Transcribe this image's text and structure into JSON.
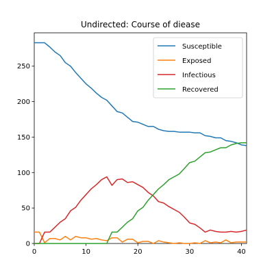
{
  "chart_data": {
    "type": "line",
    "title": "Undirected: Course of diease",
    "xlabel": "",
    "ylabel": "",
    "xlim": [
      0,
      41
    ],
    "ylim": [
      0,
      297
    ],
    "xticks": [
      0,
      10,
      20,
      30,
      40
    ],
    "yticks": [
      0,
      50,
      100,
      150,
      200,
      250
    ],
    "grid": false,
    "legend_position": "top-right",
    "x": [
      0,
      1,
      2,
      3,
      4,
      5,
      6,
      7,
      8,
      9,
      10,
      11,
      12,
      13,
      14,
      15,
      16,
      17,
      18,
      19,
      20,
      21,
      22,
      23,
      24,
      25,
      26,
      27,
      28,
      29,
      30,
      31,
      32,
      33,
      34,
      35,
      36,
      37,
      38,
      39,
      40,
      41
    ],
    "series": [
      {
        "name": "Susceptible",
        "color": "#1f77b4",
        "values": [
          283,
          283,
          283,
          277,
          270,
          265,
          255,
          250,
          241,
          233,
          225,
          219,
          212,
          206,
          202,
          194,
          186,
          184,
          178,
          172,
          171,
          168,
          165,
          165,
          161,
          159,
          158,
          158,
          157,
          157,
          157,
          156,
          156,
          152,
          151,
          149,
          149,
          145,
          144,
          142,
          139,
          138
        ]
      },
      {
        "name": "Exposed",
        "color": "#ff7f0e",
        "values": [
          16,
          16,
          1,
          7,
          7,
          5,
          10,
          5,
          10,
          8,
          8,
          6,
          7,
          5,
          4,
          8,
          8,
          2,
          6,
          6,
          1,
          3,
          3,
          0,
          4,
          2,
          1,
          0,
          1,
          0,
          0,
          1,
          0,
          4,
          1,
          2,
          1,
          5,
          1,
          2,
          2,
          2
        ]
      },
      {
        "name": "Infectious",
        "color": "#d62728",
        "values": [
          0,
          0,
          16,
          16,
          23,
          30,
          35,
          46,
          51,
          61,
          69,
          77,
          83,
          90,
          94,
          82,
          90,
          91,
          86,
          87,
          83,
          79,
          72,
          67,
          59,
          57,
          52,
          48,
          44,
          37,
          29,
          27,
          22,
          16,
          19,
          17,
          16,
          16,
          17,
          16,
          17,
          19
        ]
      },
      {
        "name": "Recovered",
        "color": "#2ca02c",
        "values": [
          0,
          0,
          0,
          0,
          0,
          0,
          0,
          0,
          0,
          0,
          0,
          0,
          0,
          0,
          0,
          16,
          16,
          23,
          30,
          35,
          46,
          51,
          61,
          69,
          77,
          83,
          90,
          94,
          98,
          106,
          114,
          116,
          122,
          128,
          129,
          132,
          135,
          135,
          139,
          141,
          142,
          142
        ]
      }
    ]
  }
}
